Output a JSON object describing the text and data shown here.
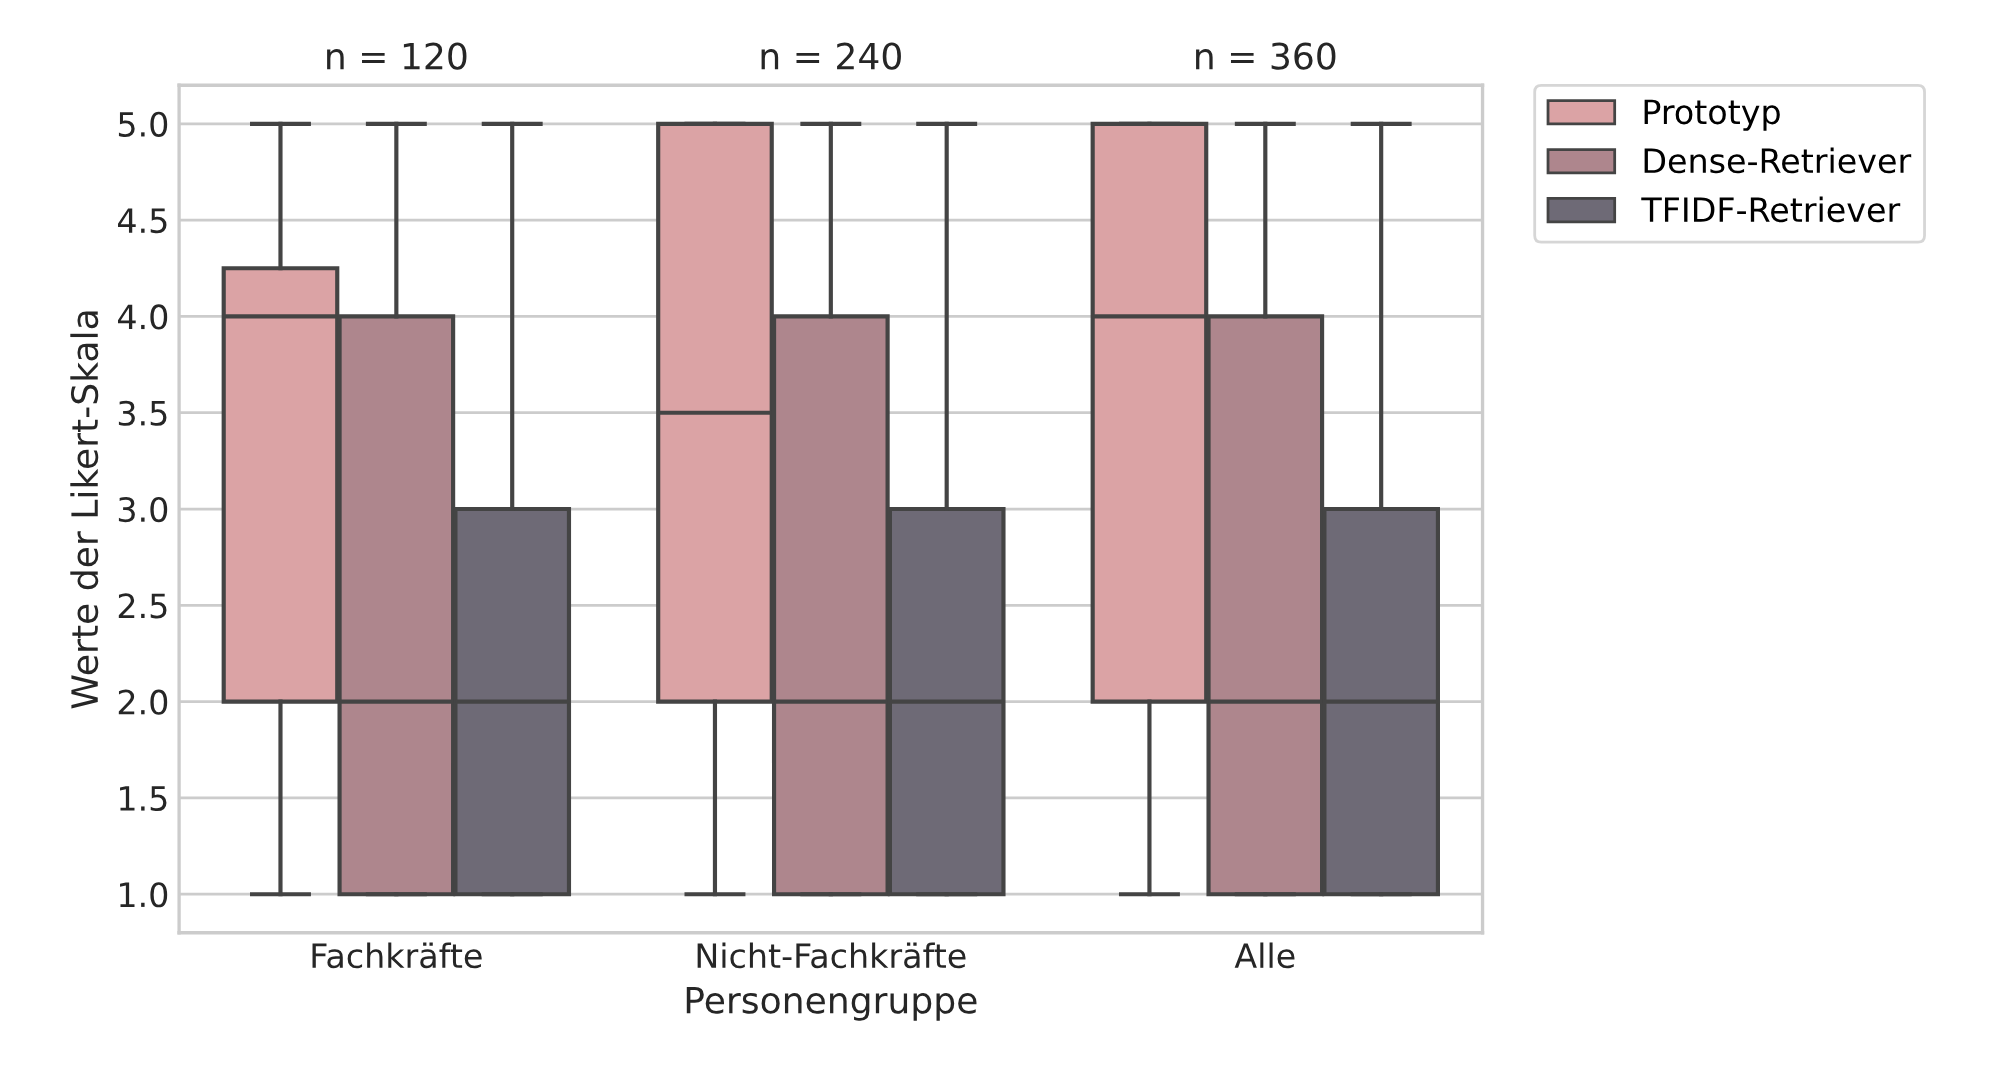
{
  "chart_data": {
    "type": "box",
    "xlabel": "Personengruppe",
    "ylabel": "Werte der Likert-Skala",
    "categories": [
      "Fachkräfte",
      "Nicht-Fachkräfte",
      "Alle"
    ],
    "annotations": [
      "n = 120",
      "n = 240",
      "n = 360"
    ],
    "series": [
      {
        "name": "Prototyp",
        "color": "#dba3a5",
        "boxes": [
          {
            "low": 1,
            "q1": 2,
            "median": 4,
            "q3": 4.25,
            "high": 5
          },
          {
            "low": 1,
            "q1": 2,
            "median": 3.5,
            "q3": 5,
            "high": 5
          },
          {
            "low": 1,
            "q1": 2,
            "median": 4,
            "q3": 5,
            "high": 5
          }
        ]
      },
      {
        "name": "Dense-Retriever",
        "color": "#ae868d",
        "boxes": [
          {
            "low": 1,
            "q1": 1,
            "median": 2,
            "q3": 4,
            "high": 5
          },
          {
            "low": 1,
            "q1": 1,
            "median": 2,
            "q3": 4,
            "high": 5
          },
          {
            "low": 1,
            "q1": 1,
            "median": 2,
            "q3": 4,
            "high": 5
          }
        ]
      },
      {
        "name": "TFIDF-Retriever",
        "color": "#6e6a76",
        "boxes": [
          {
            "low": 1,
            "q1": 1,
            "median": 2,
            "q3": 3,
            "high": 5
          },
          {
            "low": 1,
            "q1": 1,
            "median": 2,
            "q3": 3,
            "high": 5
          },
          {
            "low": 1,
            "q1": 1,
            "median": 2,
            "q3": 3,
            "high": 5
          }
        ]
      }
    ],
    "ylim": [
      0.8,
      5.2
    ],
    "yticks": [
      {
        "value": 1,
        "label": "1.0"
      },
      {
        "value": 1.5,
        "label": "1.5"
      },
      {
        "value": 2,
        "label": "2.0"
      },
      {
        "value": 2.5,
        "label": "2.5"
      },
      {
        "value": 3,
        "label": "3.0"
      },
      {
        "value": 3.5,
        "label": "3.5"
      },
      {
        "value": 4,
        "label": "4.0"
      },
      {
        "value": 4.5,
        "label": "4.5"
      },
      {
        "value": 5,
        "label": "5.0"
      }
    ],
    "grid": "y",
    "legend": "top right"
  }
}
